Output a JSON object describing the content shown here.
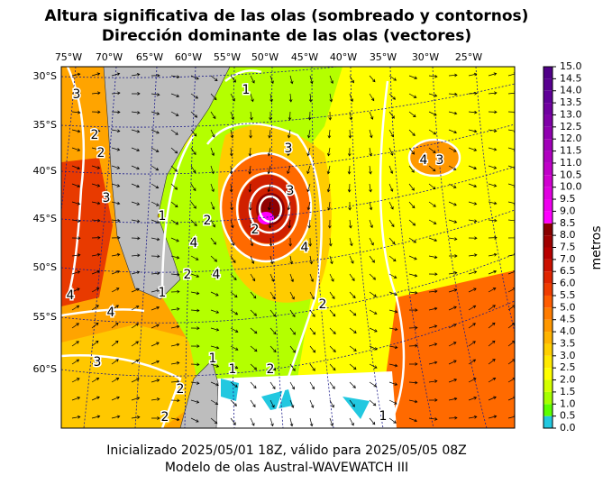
{
  "header": {
    "title": [
      "Altura significativa de las olas (sombreado y contornos)",
      "Dirección dominante de las olas (vectores)"
    ]
  },
  "map": {
    "lon_labels": [
      "75°W",
      "70°W",
      "65°W",
      "60°W",
      "55°W",
      "50°W",
      "45°W",
      "40°W",
      "35°W",
      "30°W",
      "25°W"
    ],
    "lat_labels": [
      "30°S",
      "35°S",
      "40°S",
      "45°S",
      "50°S",
      "55°S",
      "60°S"
    ],
    "contour_labels": [
      "3",
      "2",
      "2",
      "3",
      "1",
      "2",
      "4",
      "2",
      "4",
      "1",
      "4",
      "4",
      "3",
      "1",
      "3",
      "3",
      "4",
      "2",
      "4",
      "3",
      "2",
      "1",
      "1",
      "2",
      "2",
      "1",
      "2"
    ]
  },
  "colorbar": {
    "label": "metros",
    "ticks": [
      {
        "value": 0,
        "label": "0.0"
      },
      {
        "value": 0.5,
        "label": "0.5"
      },
      {
        "value": 1,
        "label": "1.0"
      },
      {
        "value": 1.5,
        "label": "1.5"
      },
      {
        "value": 2,
        "label": "2.0"
      },
      {
        "value": 2.5,
        "label": "2.5"
      },
      {
        "value": 3,
        "label": "3.0"
      },
      {
        "value": 3.5,
        "label": "3.5"
      },
      {
        "value": 4,
        "label": "4.0"
      },
      {
        "value": 4.5,
        "label": "4.5"
      },
      {
        "value": 5,
        "label": "5.0"
      },
      {
        "value": 5.5,
        "label": "5.5"
      },
      {
        "value": 6,
        "label": "6.0"
      },
      {
        "value": 6.5,
        "label": "6.5"
      },
      {
        "value": 7,
        "label": "7.0"
      },
      {
        "value": 7.5,
        "label": "7.5"
      },
      {
        "value": 8,
        "label": "8.0"
      },
      {
        "value": 8.5,
        "label": "8.5"
      },
      {
        "value": 9,
        "label": "9.0"
      },
      {
        "value": 9.5,
        "label": "9.5"
      },
      {
        "value": 10,
        "label": "10.0"
      },
      {
        "value": 10.5,
        "label": "10.5"
      },
      {
        "value": 11,
        "label": "11.0"
      },
      {
        "value": 11.5,
        "label": "11.5"
      },
      {
        "value": 12,
        "label": "12.0"
      },
      {
        "value": 12.5,
        "label": "12.5"
      },
      {
        "value": 13,
        "label": "13.0"
      },
      {
        "value": 13.5,
        "label": "13.5"
      },
      {
        "value": 14,
        "label": "14.0"
      },
      {
        "value": 14.5,
        "label": "14.5"
      },
      {
        "value": 15,
        "label": "15.0"
      }
    ],
    "colors": [
      "#22c8e0",
      "#5cff00",
      "#a6ff00",
      "#d4ff00",
      "#ffff00",
      "#ffea00",
      "#ffd000",
      "#ffb400",
      "#ff9800",
      "#ff7c00",
      "#ff5c00",
      "#f03c00",
      "#e02400",
      "#cc1000",
      "#b80000",
      "#a00000",
      "#880000",
      "#ff00ff",
      "#ee00ee",
      "#e000e0",
      "#d000d0",
      "#c000c8",
      "#b000c0",
      "#a000b8",
      "#9000b0",
      "#8000a8",
      "#7000a0",
      "#600098",
      "#580090",
      "#500088"
    ]
  },
  "footer": {
    "lines": [
      "Inicializado 2025/05/01 18Z, válido para 2025/05/05 08Z",
      "Modelo de olas Austral-WAVEWATCH III"
    ]
  }
}
